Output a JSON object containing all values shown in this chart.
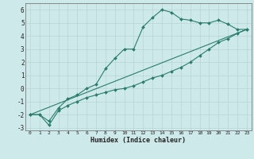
{
  "line1_x": [
    0,
    1,
    2,
    3,
    4,
    5,
    6,
    7,
    8,
    9,
    10,
    11,
    12,
    13,
    14,
    15,
    16,
    17,
    18,
    19,
    20,
    21,
    22,
    23
  ],
  "line1_y": [
    -2.0,
    -2.0,
    -2.5,
    -1.5,
    -0.8,
    -0.5,
    0.0,
    0.3,
    1.5,
    2.3,
    3.0,
    3.0,
    4.7,
    5.4,
    6.0,
    5.8,
    5.3,
    5.2,
    5.0,
    5.0,
    5.2,
    4.9,
    4.5,
    4.5
  ],
  "line2_x": [
    0,
    1,
    2,
    3,
    4,
    5,
    6,
    7,
    8,
    9,
    10,
    11,
    12,
    13,
    14,
    15,
    16,
    17,
    18,
    19,
    20,
    21,
    22,
    23
  ],
  "line2_y": [
    -2.0,
    -2.0,
    -2.8,
    -1.7,
    -1.3,
    -1.0,
    -0.7,
    -0.5,
    -0.3,
    -0.1,
    0.0,
    0.2,
    0.5,
    0.8,
    1.0,
    1.3,
    1.6,
    2.0,
    2.5,
    3.0,
    3.5,
    3.8,
    4.2,
    4.5
  ],
  "line3_x": [
    0,
    23
  ],
  "line3_y": [
    -2.0,
    4.5
  ],
  "color": "#2a7d6b",
  "bg_color": "#cee9e9",
  "grid_color": "#b8d4d4",
  "xlabel": "Humidex (Indice chaleur)",
  "xlim": [
    -0.5,
    23.5
  ],
  "ylim": [
    -3.2,
    6.5
  ],
  "yticks": [
    -3,
    -2,
    -1,
    0,
    1,
    2,
    3,
    4,
    5,
    6
  ],
  "xticks": [
    0,
    1,
    2,
    3,
    4,
    5,
    6,
    7,
    8,
    9,
    10,
    11,
    12,
    13,
    14,
    15,
    16,
    17,
    18,
    19,
    20,
    21,
    22,
    23
  ]
}
